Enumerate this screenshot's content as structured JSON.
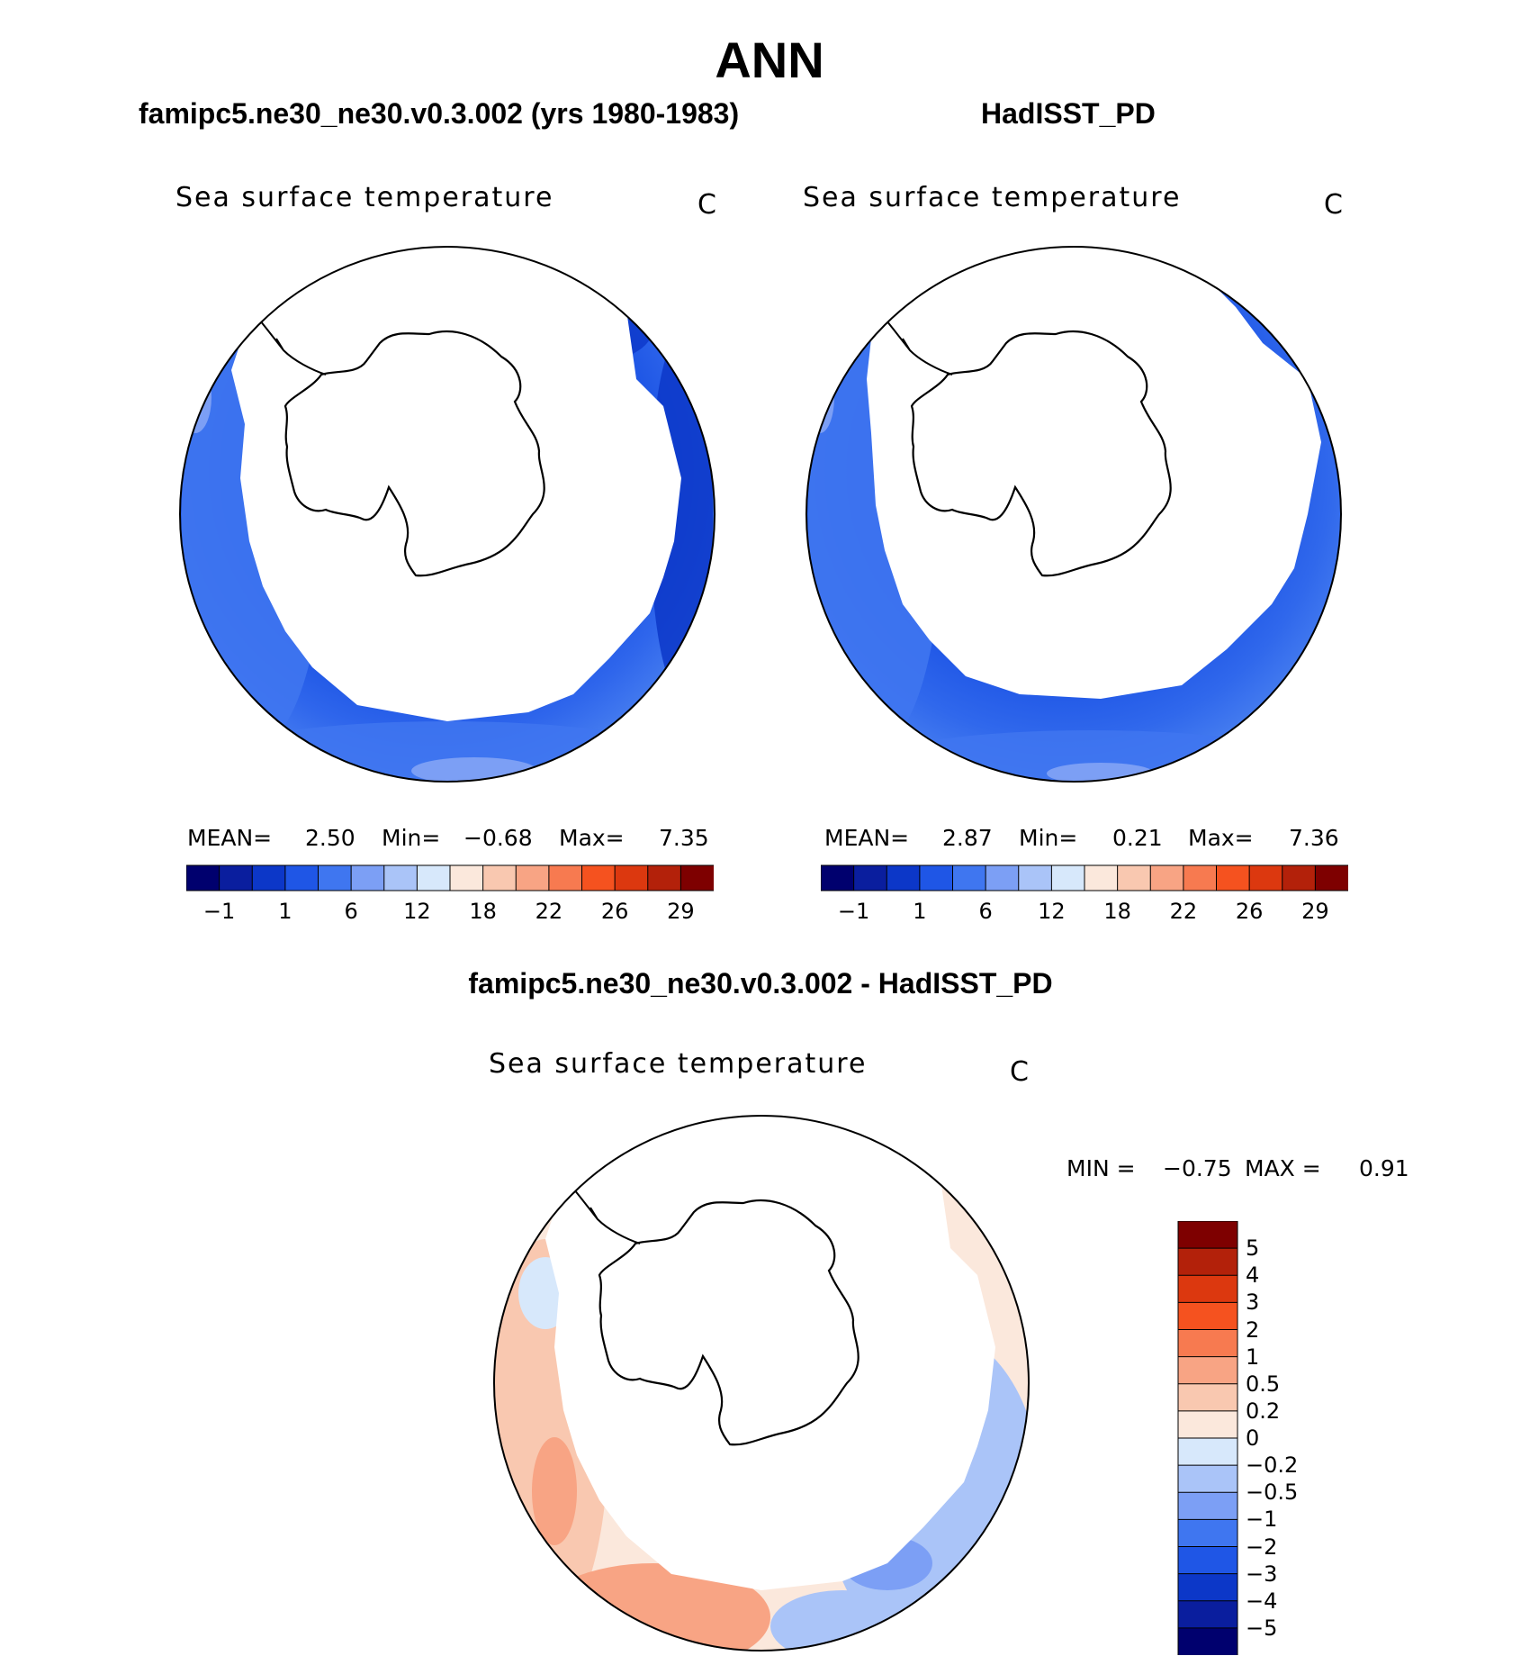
{
  "main_title": "ANN",
  "panels": {
    "left": {
      "title": "famipc5.ne30_ne30.v0.3.002 (yrs 1980-1983)",
      "variable": "Sea surface temperature",
      "unit": "C",
      "stats": {
        "mean_label": "MEAN=",
        "mean": "2.50",
        "min_label": "Min=",
        "min": "−0.68",
        "max_label": "Max=",
        "max": "7.35"
      }
    },
    "right": {
      "title": "HadISST_PD",
      "variable": "Sea surface temperature",
      "unit": "C",
      "stats": {
        "mean_label": "MEAN=",
        "mean": "2.87",
        "min_label": "Min=",
        "min": "0.21",
        "max_label": "Max=",
        "max": "7.36"
      }
    },
    "diff": {
      "title": "famipc5.ne30_ne30.v0.3.002 - HadISST_PD",
      "variable": "Sea surface temperature",
      "unit": "C",
      "stats": {
        "min_label": "MIN =",
        "min": "−0.75",
        "max_label": "MAX =",
        "max": "0.91"
      }
    }
  },
  "colorbar_main": {
    "colors": [
      "#00006e",
      "#0a1e9e",
      "#0c37c8",
      "#1f56e6",
      "#3f76f0",
      "#7c9ff5",
      "#aac4f8",
      "#d7e8fb",
      "#fbe8dc",
      "#f9c8b0",
      "#f8a484",
      "#f77a50",
      "#f5521f",
      "#dc380f",
      "#b3210a",
      "#7e0000"
    ],
    "labels": [
      "−1",
      "1",
      "6",
      "12",
      "18",
      "22",
      "26",
      "29"
    ]
  },
  "colorbar_diff": {
    "colors": [
      "#7e0000",
      "#b3210a",
      "#dc380f",
      "#f5521f",
      "#f77a50",
      "#f8a484",
      "#f9c8b0",
      "#fbe8dc",
      "#d7e8fb",
      "#aac4f8",
      "#7c9ff5",
      "#3f76f0",
      "#1f56e6",
      "#0c37c8",
      "#0a1e9e",
      "#00006e"
    ],
    "labels": [
      "5",
      "4",
      "3",
      "2",
      "1",
      "0.5",
      "0.2",
      "0",
      "−0.2",
      "−0.5",
      "−1",
      "−2",
      "−3",
      "−4",
      "−5"
    ]
  }
}
